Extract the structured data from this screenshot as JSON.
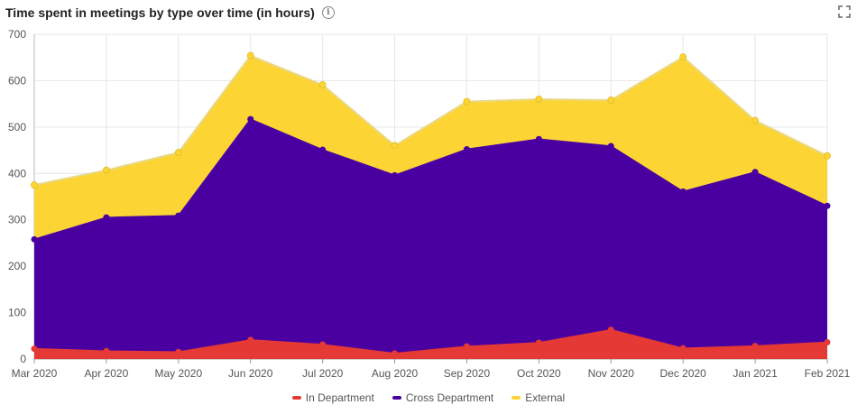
{
  "header": {
    "title": "Time spent in meetings by type over time (in hours)",
    "info_icon": "info-icon",
    "expand_icon": "fullscreen-icon"
  },
  "chart_data": {
    "type": "area",
    "stacked": true,
    "categories": [
      "Mar 2020",
      "Apr 2020",
      "May 2020",
      "Jun 2020",
      "Jul 2020",
      "Aug 2020",
      "Sep 2020",
      "Oct 2020",
      "Nov 2020",
      "Dec 2020",
      "Jan 2021",
      "Feb 2021"
    ],
    "series": [
      {
        "name": "In Department",
        "color": "#e53935",
        "values": [
          22,
          17,
          15,
          41,
          31,
          12,
          27,
          35,
          63,
          23,
          28,
          36
        ]
      },
      {
        "name": "Cross Department",
        "color": "#4a00a0",
        "values": [
          236,
          288,
          294,
          476,
          420,
          384,
          425,
          439,
          396,
          338,
          375,
          294
        ]
      },
      {
        "name": "External",
        "color": "#fcd535",
        "values": [
          117,
          102,
          136,
          137,
          140,
          64,
          103,
          86,
          99,
          290,
          111,
          108
        ]
      }
    ],
    "ylim": [
      0,
      700
    ],
    "yticks": [
      0,
      100,
      200,
      300,
      400,
      500,
      600,
      700
    ],
    "grid": true,
    "legend_position": "bottom-center"
  }
}
